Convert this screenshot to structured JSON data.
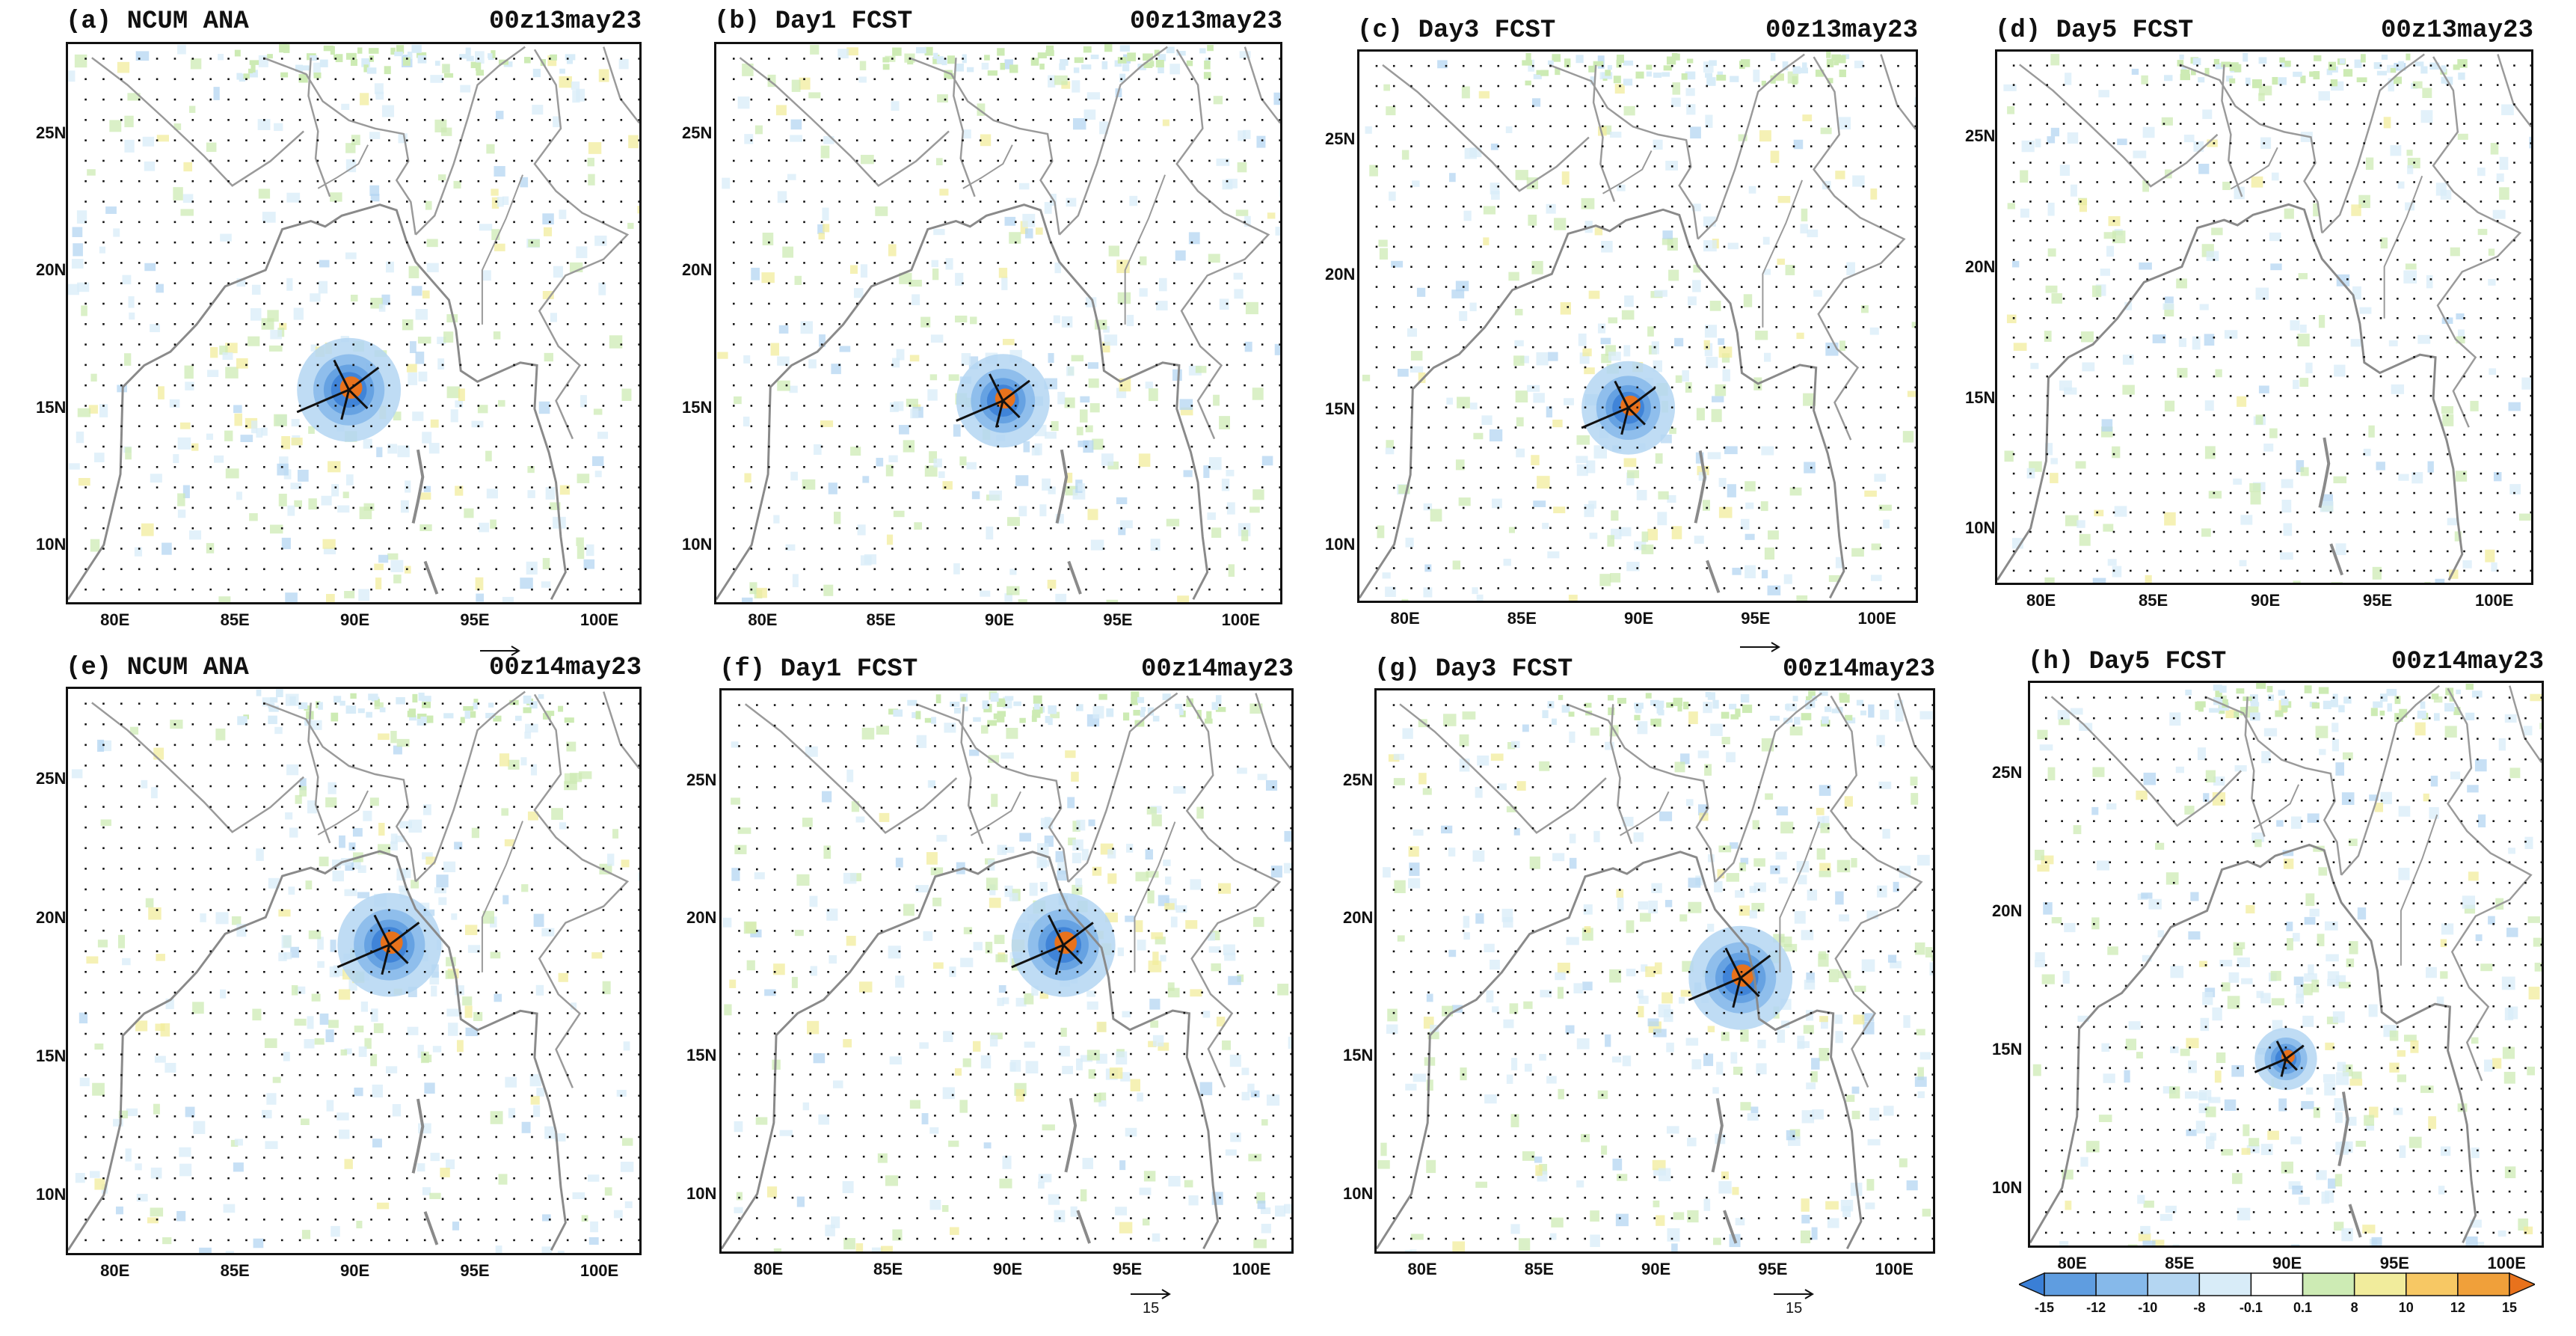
{
  "panels": [
    {
      "id": "a",
      "label": "(a) NCUM ANA",
      "time": "00z13may23",
      "storm": {
        "lon": 89.8,
        "lat": 15.6,
        "size": 1.0
      },
      "ref_arrow_label": ""
    },
    {
      "id": "b",
      "label": "(b) Day1 FCST",
      "time": "00z13may23",
      "storm": {
        "lon": 90.2,
        "lat": 15.2,
        "size": 0.9
      },
      "ref_arrow_label": ""
    },
    {
      "id": "c",
      "label": "(c) Day3 FCST",
      "time": "00z13may23",
      "storm": {
        "lon": 89.6,
        "lat": 15.0,
        "size": 0.9
      },
      "ref_arrow_label": ""
    },
    {
      "id": "d",
      "label": "(d) Day5 FCST",
      "time": "00z13may23",
      "storm": null,
      "ref_arrow_label": ""
    },
    {
      "id": "e",
      "label": "(e) NCUM ANA",
      "time": "00z14may23",
      "storm": {
        "lon": 91.5,
        "lat": 19.0,
        "size": 1.0
      },
      "ref_arrow_label": ""
    },
    {
      "id": "f",
      "label": "(f) Day1 FCST",
      "time": "00z14may23",
      "storm": {
        "lon": 92.4,
        "lat": 19.0,
        "size": 1.0
      },
      "ref_arrow_label": "15"
    },
    {
      "id": "g",
      "label": "(g) Day3 FCST",
      "time": "00z14may23",
      "storm": {
        "lon": 93.7,
        "lat": 17.8,
        "size": 1.0
      },
      "ref_arrow_label": "15"
    },
    {
      "id": "h",
      "label": "(h) Day5 FCST",
      "time": "00z14may23",
      "storm": {
        "lon": 90.0,
        "lat": 14.6,
        "size": 0.6
      },
      "ref_arrow_label": ""
    }
  ],
  "axes": {
    "lat_ticks": [
      "10N",
      "15N",
      "20N",
      "25N"
    ],
    "lon_ticks": [
      "80E",
      "85E",
      "90E",
      "95E",
      "100E"
    ],
    "lat_values": [
      10,
      15,
      20,
      25
    ],
    "lon_values": [
      80,
      85,
      90,
      95,
      100
    ],
    "lon_range": [
      78,
      102
    ],
    "lat_range": [
      7.8,
      28.3
    ]
  },
  "colorbar": {
    "labels": [
      "-15",
      "-12",
      "-10",
      "-8",
      "-0.1",
      "0.1",
      "8",
      "10",
      "12",
      "15"
    ],
    "colors": [
      "#3a7fd6",
      "#5f9de0",
      "#86b9ea",
      "#b4d6f2",
      "#d8ecf8",
      "#ffffff",
      "#cdebb4",
      "#f1ec9c",
      "#f7c864",
      "#f0a03a",
      "#e8721c"
    ],
    "ref_arrow_label": "15"
  }
}
